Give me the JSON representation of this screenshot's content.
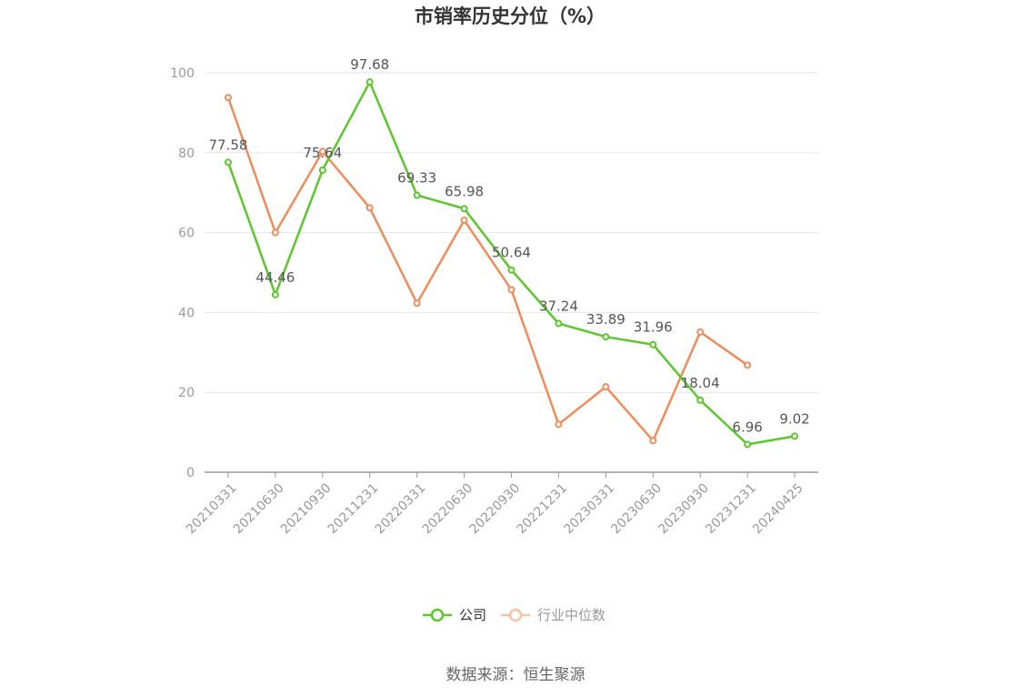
{
  "chart_data": {
    "type": "line",
    "title": "市销率历史分位（%）",
    "categories": [
      "20210331",
      "20210630",
      "20210930",
      "20211231",
      "20220331",
      "20220630",
      "20220930",
      "20221231",
      "20230331",
      "20230630",
      "20230930",
      "20231231",
      "20240425"
    ],
    "ylim": [
      0,
      100
    ],
    "yticks": [
      0,
      20,
      40,
      60,
      80,
      100
    ],
    "grid": true,
    "legend_position": "bottom",
    "series": [
      {
        "name": "公司",
        "color": "#5cc72b",
        "values": [
          77.58,
          44.46,
          75.64,
          97.68,
          69.33,
          65.98,
          50.64,
          37.24,
          33.89,
          31.96,
          18.04,
          6.96,
          9.02
        ],
        "labels": [
          "77.58",
          "44.46",
          "75.64",
          "97.68",
          "69.33",
          "65.98",
          "50.64",
          "37.24",
          "33.89",
          "31.96",
          "18.04",
          "6.96",
          "9.02"
        ]
      },
      {
        "name": "行业中位数",
        "color": "#f08c5a",
        "values": [
          93.8,
          60.0,
          80.3,
          66.2,
          42.3,
          63.1,
          45.7,
          12.0,
          21.4,
          7.9,
          35.1,
          26.8,
          null
        ]
      }
    ]
  },
  "source": "数据来源：恒生聚源"
}
